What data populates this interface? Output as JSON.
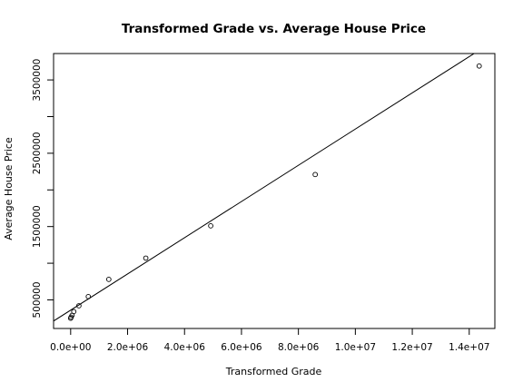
{
  "chart_data": {
    "type": "scatter",
    "title": "Transformed Grade vs. Average House Price",
    "xlabel": "Transformed Grade",
    "ylabel": "Average House Price",
    "xlim": [
      -600000,
      14900000
    ],
    "ylim": [
      110000,
      3860000
    ],
    "x_ticks": [
      0,
      2000000,
      4000000,
      6000000,
      8000000,
      10000000,
      12000000,
      14000000
    ],
    "x_tick_labels": [
      "0.0e+00",
      "2.0e+06",
      "4.0e+06",
      "6.0e+06",
      "8.0e+06",
      "1.0e+07",
      "1.2e+07",
      "1.4e+07"
    ],
    "y_ticks": [
      500000,
      1000000,
      1500000,
      2000000,
      2500000,
      3000000,
      3500000
    ],
    "y_tick_labels": [
      "500000",
      "",
      "1500000",
      "",
      "2500000",
      "",
      "3500000"
    ],
    "points": [
      {
        "x": 0,
        "y": 250000
      },
      {
        "x": 15000,
        "y": 265000
      },
      {
        "x": 50000,
        "y": 290000
      },
      {
        "x": 110000,
        "y": 340000
      },
      {
        "x": 290000,
        "y": 420000
      },
      {
        "x": 620000,
        "y": 545000
      },
      {
        "x": 1340000,
        "y": 780000
      },
      {
        "x": 2640000,
        "y": 1070000
      },
      {
        "x": 4920000,
        "y": 1510000
      },
      {
        "x": 8590000,
        "y": 2210000
      },
      {
        "x": 14350000,
        "y": 3690000
      }
    ],
    "fit_line": {
      "intercept": 360000,
      "slope": 0.247
    },
    "grid": false,
    "legend": "none"
  }
}
